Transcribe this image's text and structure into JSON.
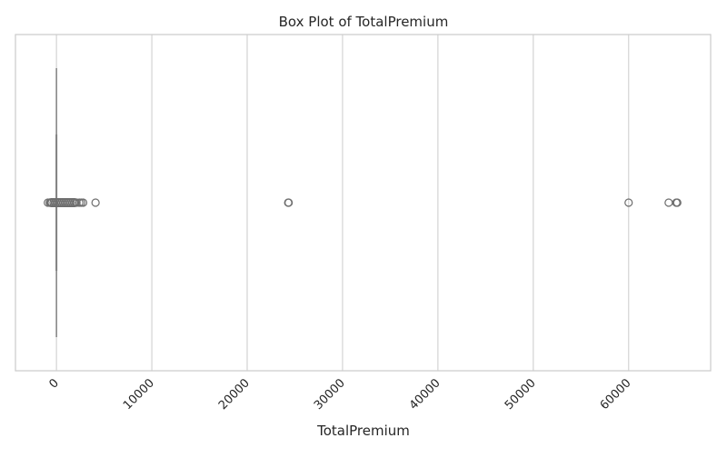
{
  "chart_data": {
    "type": "box",
    "title": "Box Plot of TotalPremium",
    "xlabel": "TotalPremium",
    "ylabel": "",
    "xlim": [
      -4300,
      68600
    ],
    "xticks": [
      0,
      10000,
      20000,
      30000,
      40000,
      50000,
      60000
    ],
    "xtick_labels": [
      "0",
      "10000",
      "20000",
      "30000",
      "40000",
      "50000",
      "60000"
    ],
    "grid": "vertical",
    "orientation": "horizontal",
    "box": {
      "q1": 0,
      "median": 0,
      "q3": 0,
      "whisker_low": 0,
      "whisker_high": 0
    },
    "outliers_dense_range": [
      -950,
      2300
    ],
    "outliers": [
      -900,
      -700,
      -500,
      -300,
      -100,
      100,
      300,
      500,
      700,
      900,
      1100,
      1300,
      1500,
      1700,
      1900,
      2100,
      2400,
      2600,
      2800,
      4100,
      24300,
      24350,
      60000,
      64200,
      65000,
      65100
    ],
    "colors": {
      "box_line": "#808080",
      "outlier_edge": "#6e6e6e",
      "grid": "#d3d3d3",
      "axis_frame": "#cccccc"
    }
  }
}
